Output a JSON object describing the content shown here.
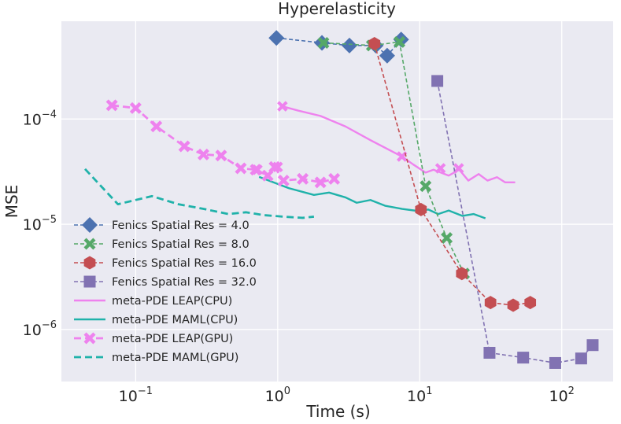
{
  "chart_data": {
    "type": "line",
    "title": "Hyperelasticity",
    "xlabel": "Time (s)",
    "ylabel": "MSE",
    "xscale": "log",
    "yscale": "log",
    "xlim": [
      0.03,
      230
    ],
    "ylim": [
      3.2e-07,
      0.00085
    ],
    "grid": true,
    "legend_placement": "lower-left",
    "background_color": "#eaeaf2",
    "x_ticks": [
      {
        "value": 0.1,
        "base": "10",
        "exp": "−1"
      },
      {
        "value": 1,
        "base": "10",
        "exp": "0"
      },
      {
        "value": 10,
        "base": "10",
        "exp": "1"
      },
      {
        "value": 100,
        "base": "10",
        "exp": "2"
      }
    ],
    "y_ticks": [
      {
        "value": 1e-06,
        "base": "10",
        "exp": "−6"
      },
      {
        "value": 1e-05,
        "base": "10",
        "exp": "−5"
      },
      {
        "value": 0.0001,
        "base": "10",
        "exp": "−4"
      }
    ],
    "series": [
      {
        "name": "Fenics Spatial Res = 4.0",
        "color": "#4c72b0",
        "line_style": "dashed-thin",
        "marker": "diamond",
        "points": [
          [
            0.98,
            0.00059
          ],
          [
            2.05,
            0.00053
          ],
          [
            3.2,
            0.0005
          ],
          [
            4.9,
            0.0005
          ],
          [
            5.9,
            0.0004
          ],
          [
            7.4,
            0.00057
          ]
        ]
      },
      {
        "name": "Fenics Spatial Res = 8.0",
        "color": "#55a868",
        "line_style": "dashed-thin",
        "marker": "x",
        "points": [
          [
            2.1,
            0.00053
          ],
          [
            4.6,
            0.0005
          ],
          [
            7.2,
            0.00054
          ],
          [
            11.0,
            2.3e-05
          ],
          [
            15.5,
            7.4e-06
          ],
          [
            20.5,
            3.4e-06
          ]
        ]
      },
      {
        "name": "Fenics Spatial Res = 16.0",
        "color": "#c44e52",
        "line_style": "dashed-thin",
        "marker": "hexagon",
        "points": [
          [
            4.8,
            0.00052
          ],
          [
            10.2,
            1.38e-05
          ],
          [
            19.8,
            3.4e-06
          ],
          [
            31.5,
            1.8e-06
          ],
          [
            45.5,
            1.7e-06
          ],
          [
            60.0,
            1.8e-06
          ]
        ]
      },
      {
        "name": "Fenics Spatial Res = 32.0",
        "color": "#8172b2",
        "line_style": "dashed-thin",
        "marker": "square",
        "points": [
          [
            13.3,
            0.00023
          ],
          [
            31.0,
            6e-07
          ],
          [
            53.5,
            5.4e-07
          ],
          [
            90.0,
            4.8e-07
          ],
          [
            137.0,
            5.3e-07
          ],
          [
            165.0,
            7.1e-07
          ]
        ]
      },
      {
        "name": "meta-PDE LEAP(CPU)",
        "color": "#ee82ee",
        "line_style": "solid",
        "marker": "x-start",
        "points": [
          [
            1.08,
            0.000132
          ],
          [
            1.4,
            0.00012
          ],
          [
            2.0,
            0.000107
          ],
          [
            3.0,
            8.5e-05
          ],
          [
            4.5,
            6.3e-05
          ],
          [
            7.5,
            4.4e-05
          ],
          [
            9.0,
            3.7e-05
          ],
          [
            11.0,
            3.1e-05
          ],
          [
            12.5,
            3.3e-05
          ],
          [
            16.0,
            2.9e-05
          ],
          [
            19.0,
            3.3e-05
          ],
          [
            22.0,
            2.6e-05
          ],
          [
            26.0,
            3e-05
          ],
          [
            30.0,
            2.6e-05
          ],
          [
            35.0,
            2.8e-05
          ],
          [
            40.0,
            2.5e-05
          ],
          [
            47.0,
            2.5e-05
          ]
        ],
        "extra_markers": [
          [
            7.5,
            4.4e-05
          ],
          [
            14.0,
            3.4e-05
          ],
          [
            18.8,
            3.4e-05
          ]
        ]
      },
      {
        "name": "meta-PDE MAML(CPU)",
        "color": "#20b2aa",
        "line_style": "solid",
        "marker": "none",
        "points": [
          [
            0.74,
            2.82e-05
          ],
          [
            1.2,
            2.2e-05
          ],
          [
            1.8,
            1.9e-05
          ],
          [
            2.3,
            2e-05
          ],
          [
            3.0,
            1.8e-05
          ],
          [
            3.6,
            1.6e-05
          ],
          [
            4.5,
            1.7e-05
          ],
          [
            5.7,
            1.5e-05
          ],
          [
            7.5,
            1.4e-05
          ],
          [
            10.0,
            1.33e-05
          ],
          [
            11.5,
            1.38e-05
          ],
          [
            13.5,
            1.25e-05
          ],
          [
            16.0,
            1.35e-05
          ],
          [
            20.0,
            1.2e-05
          ],
          [
            24.0,
            1.25e-05
          ],
          [
            29.0,
            1.14e-05
          ]
        ]
      },
      {
        "name": "meta-PDE LEAP(GPU)",
        "color": "#ee82ee",
        "line_style": "dashed",
        "marker": "x",
        "points": [
          [
            0.068,
            0.000135
          ],
          [
            0.1,
            0.000127
          ],
          [
            0.14,
            8.5e-05
          ],
          [
            0.22,
            5.5e-05
          ],
          [
            0.3,
            4.6e-05
          ],
          [
            0.4,
            4.5e-05
          ],
          [
            0.55,
            3.4e-05
          ],
          [
            0.7,
            3.3e-05
          ],
          [
            0.85,
            2.9e-05
          ],
          [
            0.95,
            3.5e-05
          ],
          [
            1.1,
            2.6e-05
          ],
          [
            1.5,
            2.7e-05
          ],
          [
            2.0,
            2.5e-05
          ],
          [
            2.5,
            2.7e-05
          ]
        ],
        "marker_points": [
          [
            0.068,
            0.000135
          ],
          [
            0.4,
            4.5e-05
          ],
          [
            0.72,
            3.3e-05
          ],
          [
            1.0,
            3.5e-05
          ]
        ]
      },
      {
        "name": "meta-PDE MAML(GPU)",
        "color": "#20b2aa",
        "line_style": "dashed",
        "marker": "none",
        "points": [
          [
            0.044,
            3.35e-05
          ],
          [
            0.075,
            1.55e-05
          ],
          [
            0.13,
            1.85e-05
          ],
          [
            0.2,
            1.55e-05
          ],
          [
            0.3,
            1.4e-05
          ],
          [
            0.45,
            1.25e-05
          ],
          [
            0.6,
            1.3e-05
          ],
          [
            0.8,
            1.22e-05
          ],
          [
            1.1,
            1.18e-05
          ],
          [
            1.5,
            1.15e-05
          ],
          [
            1.8,
            1.18e-05
          ]
        ]
      }
    ]
  }
}
